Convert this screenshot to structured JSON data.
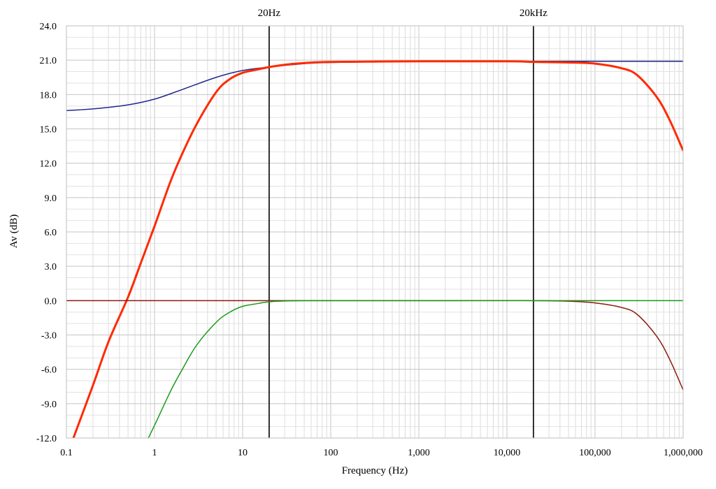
{
  "chart_data": {
    "type": "line",
    "xlabel": "Frequency (Hz)",
    "ylabel": "Av (dB)",
    "x_scale": "log",
    "xlim": [
      0.1,
      1000000
    ],
    "ylim": [
      -12,
      24
    ],
    "grid": true,
    "x_tick_labels": [
      "0.1",
      "1",
      "10",
      "100",
      "1,000",
      "10,000",
      "100,000",
      "1,000,000"
    ],
    "y_tick_labels": [
      "24.0",
      "21.0",
      "18.0",
      "15.0",
      "12.0",
      "9.0",
      "6.0",
      "3.0",
      "0.0",
      "-3.0",
      "-6.0",
      "-9.0",
      "-12.0"
    ],
    "markers": [
      {
        "label": "20Hz",
        "x": 20
      },
      {
        "label": "20kHz",
        "x": 20000
      }
    ],
    "series": [
      {
        "color": "#1f2a8c",
        "width": 1.5,
        "x": [
          0.1,
          0.2,
          0.5,
          1,
          2,
          5,
          10,
          20,
          50,
          100,
          1000,
          10000,
          100000,
          1000000
        ],
        "y": [
          16.6,
          16.75,
          17.1,
          17.6,
          18.4,
          19.5,
          20.1,
          20.4,
          20.7,
          20.8,
          20.9,
          20.9,
          20.9,
          20.9
        ]
      },
      {
        "color": "#ff2a00",
        "width": 3,
        "x": [
          0.12,
          0.2,
          0.3,
          0.5,
          0.7,
          1,
          1.5,
          2,
          3,
          5,
          7,
          10,
          15,
          20,
          30,
          50,
          100,
          1000,
          10000,
          20000,
          50000,
          100000,
          200000,
          300000,
          500000,
          700000,
          1000000
        ],
        "y": [
          -12,
          -7.4,
          -3.6,
          0.3,
          3.3,
          6.5,
          10.3,
          12.6,
          15.4,
          18.2,
          19.3,
          19.9,
          20.2,
          20.4,
          20.6,
          20.75,
          20.85,
          20.9,
          20.9,
          20.85,
          20.8,
          20.7,
          20.3,
          19.7,
          17.8,
          15.8,
          13.1
        ]
      },
      {
        "color": "#8b1a0f",
        "width": 1.5,
        "x": [
          0.1,
          1000,
          20000,
          50000,
          100000,
          200000,
          300000,
          500000,
          700000,
          1000000
        ],
        "y": [
          0,
          0,
          0,
          -0.05,
          -0.2,
          -0.6,
          -1.2,
          -3.1,
          -5.1,
          -7.8
        ]
      },
      {
        "color": "#1a9a1a",
        "width": 1.5,
        "x": [
          0.85,
          1,
          1.5,
          2,
          3,
          5,
          7,
          10,
          15,
          20,
          30,
          50,
          100,
          1000000
        ],
        "y": [
          -12,
          -10.9,
          -8.0,
          -6.2,
          -3.9,
          -1.9,
          -1.05,
          -0.5,
          -0.25,
          -0.1,
          -0.03,
          0,
          0,
          0
        ]
      }
    ]
  }
}
